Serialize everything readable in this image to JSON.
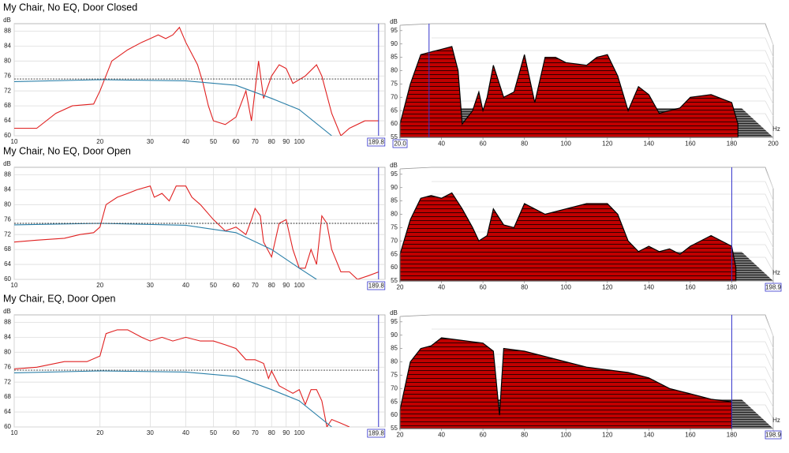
{
  "chart_data": [
    {
      "type": "line",
      "title": "My Chair, No EQ, Door Closed",
      "y_unit": "dB",
      "log_x": true,
      "grid": true,
      "xlim": [
        10,
        200
      ],
      "xticks": [
        10,
        20,
        30,
        40,
        50,
        60,
        70,
        80,
        90,
        100
      ],
      "ylim": [
        60,
        90
      ],
      "yticks": [
        60,
        64,
        68,
        72,
        76,
        80,
        84,
        88
      ],
      "cursor": 189.8,
      "series": [
        {
          "color": "#e02020",
          "x": [
            10,
            12,
            14,
            16,
            19,
            20,
            22,
            25,
            28,
            30,
            32,
            34,
            36,
            38,
            40,
            44,
            46,
            48,
            50,
            55,
            60,
            65,
            68,
            72,
            75,
            80,
            85,
            90,
            95,
            105,
            115,
            120,
            130,
            140,
            150,
            170,
            190
          ],
          "values": [
            62,
            62,
            66,
            68,
            68.5,
            72,
            80,
            83,
            85,
            86,
            87,
            86,
            87,
            89,
            85,
            79,
            74,
            68,
            64,
            63,
            65,
            72,
            64,
            80,
            70,
            76,
            79,
            78,
            74,
            76,
            79,
            76,
            66,
            60,
            62,
            64,
            64
          ]
        },
        {
          "color": "#2a7fa8",
          "x": [
            10,
            20,
            40,
            60,
            80,
            100,
            130
          ],
          "values": [
            74.5,
            75,
            74.7,
            73.5,
            70,
            67,
            60
          ]
        },
        {
          "color": "#333333",
          "dash": true,
          "x": [
            10,
            190
          ],
          "values": [
            75.2,
            75.2
          ]
        }
      ]
    },
    {
      "type": "waterfall",
      "y_unit": "dB",
      "x_unit": "Hz",
      "color": "#cc0000",
      "xlim": [
        20,
        200
      ],
      "xticks": [
        {
          "value": 20,
          "label": "20.0"
        },
        40,
        60,
        80,
        100,
        120,
        140,
        160,
        180,
        200
      ],
      "ylim": [
        55,
        97
      ],
      "yticks": [
        55,
        60,
        65,
        70,
        75,
        80,
        85,
        90,
        95
      ],
      "marker_x": 34,
      "x": [
        20,
        25,
        30,
        35,
        40,
        45,
        48,
        50,
        55,
        58,
        60,
        62,
        65,
        70,
        75,
        80,
        85,
        90,
        95,
        100,
        110,
        115,
        120,
        125,
        130,
        135,
        140,
        145,
        150,
        155,
        160,
        170,
        180,
        183
      ],
      "values": [
        60,
        75,
        86,
        87,
        88,
        89,
        80,
        60,
        65,
        72,
        65,
        70,
        82,
        70,
        72,
        86,
        68,
        85,
        85,
        83,
        82,
        85,
        86,
        78,
        65,
        74,
        71,
        64,
        65,
        66,
        70,
        71,
        68,
        60
      ]
    },
    {
      "type": "line",
      "title": "My Chair, No EQ, Door Open",
      "y_unit": "dB",
      "log_x": true,
      "grid": true,
      "xlim": [
        10,
        200
      ],
      "xticks": [
        10,
        20,
        30,
        40,
        50,
        60,
        70,
        80,
        90,
        100
      ],
      "ylim": [
        60,
        90
      ],
      "yticks": [
        60,
        64,
        68,
        72,
        76,
        80,
        84,
        88
      ],
      "cursor": 189.8,
      "series": [
        {
          "color": "#e02020",
          "x": [
            10,
            12,
            15,
            17,
            19,
            20,
            21,
            23,
            25,
            27,
            30,
            31,
            33,
            35,
            37,
            40,
            42,
            45,
            50,
            55,
            60,
            65,
            68,
            70,
            73,
            75,
            80,
            85,
            90,
            95,
            100,
            105,
            110,
            115,
            120,
            125,
            130,
            140,
            150,
            160,
            175,
            190
          ],
          "values": [
            70,
            70.5,
            71,
            72,
            72.5,
            74,
            80,
            82,
            83,
            84,
            85,
            82,
            83,
            81,
            85,
            85,
            82,
            80,
            76,
            73,
            74,
            72,
            76,
            79,
            77,
            70,
            66,
            75,
            76,
            68,
            63,
            63,
            68,
            64,
            77,
            75,
            68,
            62,
            62,
            60,
            61,
            62
          ]
        },
        {
          "color": "#2a7fa8",
          "x": [
            10,
            20,
            40,
            60,
            80,
            100,
            115
          ],
          "values": [
            74.6,
            75,
            74.5,
            72.5,
            68,
            63,
            60
          ]
        },
        {
          "color": "#333333",
          "dash": true,
          "x": [
            10,
            190
          ],
          "values": [
            75,
            75
          ]
        }
      ]
    },
    {
      "type": "waterfall",
      "y_unit": "dB",
      "x_unit": "Hz",
      "color": "#cc0000",
      "xlim": [
        20,
        200
      ],
      "xticks": [
        20,
        40,
        60,
        80,
        100,
        120,
        140,
        160,
        180,
        200
      ],
      "ylim": [
        55,
        97
      ],
      "yticks": [
        55,
        60,
        65,
        70,
        75,
        80,
        85,
        90,
        95
      ],
      "marker_x": 180,
      "cursor": 198.9,
      "x": [
        20,
        25,
        30,
        35,
        40,
        45,
        50,
        55,
        58,
        62,
        65,
        70,
        75,
        80,
        90,
        100,
        110,
        120,
        125,
        130,
        135,
        140,
        145,
        150,
        155,
        160,
        170,
        180,
        182
      ],
      "values": [
        65,
        78,
        86,
        87,
        86,
        88,
        82,
        75,
        70,
        72,
        82,
        76,
        75,
        84,
        80,
        82,
        84,
        84,
        80,
        70,
        66,
        68,
        66,
        67,
        65,
        68,
        72,
        68,
        60
      ]
    },
    {
      "type": "line",
      "title": "My Chair, EQ, Door Open",
      "y_unit": "dB",
      "log_x": true,
      "grid": true,
      "xlim": [
        10,
        200
      ],
      "xticks": [
        10,
        20,
        30,
        40,
        50,
        60,
        70,
        80,
        90,
        100
      ],
      "ylim": [
        60,
        90
      ],
      "yticks": [
        60,
        64,
        68,
        72,
        76,
        80,
        84,
        88
      ],
      "cursor": 189.8,
      "series": [
        {
          "color": "#e02020",
          "x": [
            10,
            12,
            15,
            18,
            20,
            21,
            23,
            25,
            28,
            30,
            33,
            36,
            40,
            45,
            50,
            55,
            60,
            65,
            70,
            75,
            78,
            80,
            85,
            90,
            95,
            100,
            105,
            110,
            115,
            120,
            125,
            130,
            140,
            150
          ],
          "values": [
            75.5,
            76,
            77.5,
            77.5,
            79,
            85,
            86,
            86,
            84,
            83,
            84,
            83,
            84,
            83,
            83,
            82,
            81,
            78,
            78,
            77,
            73,
            75,
            71,
            70,
            69,
            70,
            66,
            70,
            70,
            67,
            60,
            62,
            61,
            60
          ]
        },
        {
          "color": "#2a7fa8",
          "x": [
            10,
            20,
            40,
            60,
            80,
            100,
            130
          ],
          "values": [
            74.5,
            75,
            74.7,
            73.5,
            70,
            67,
            60
          ]
        },
        {
          "color": "#333333",
          "dash": true,
          "x": [
            10,
            190
          ],
          "values": [
            75.2,
            75.2
          ]
        }
      ]
    },
    {
      "type": "waterfall",
      "y_unit": "dB",
      "x_unit": "Hz",
      "color": "#cc0000",
      "xlim": [
        20,
        200
      ],
      "xticks": [
        20,
        40,
        60,
        80,
        100,
        120,
        140,
        160,
        180,
        200
      ],
      "ylim": [
        55,
        97
      ],
      "yticks": [
        55,
        60,
        65,
        70,
        75,
        80,
        85,
        90,
        95
      ],
      "marker_x": 180,
      "cursor": 198.9,
      "x": [
        20,
        25,
        30,
        35,
        40,
        50,
        60,
        65,
        68,
        70,
        80,
        90,
        100,
        110,
        120,
        130,
        140,
        150,
        160,
        170,
        180
      ],
      "values": [
        62,
        80,
        85,
        86,
        89,
        88,
        87,
        84,
        60,
        85,
        84,
        82,
        80,
        78,
        77,
        76,
        74,
        70,
        68,
        66,
        65
      ]
    }
  ]
}
